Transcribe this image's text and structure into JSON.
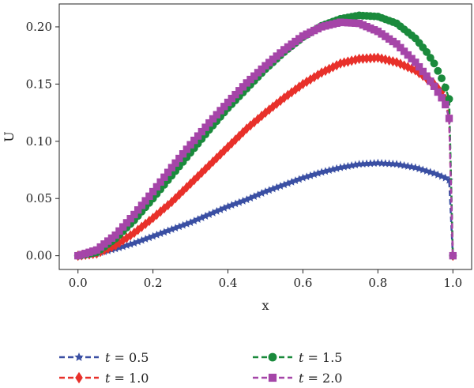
{
  "chart_data": {
    "type": "line",
    "xlabel": "x",
    "ylabel": "U",
    "xlim": [
      -0.05,
      1.05
    ],
    "ylim": [
      -0.012,
      0.22
    ],
    "x_ticks": [
      0.0,
      0.2,
      0.4,
      0.6,
      0.8,
      1.0
    ],
    "x_tick_labels": [
      "0.0",
      "0.2",
      "0.4",
      "0.6",
      "0.8",
      "1.0"
    ],
    "y_ticks": [
      0.0,
      0.05,
      0.1,
      0.15,
      0.2
    ],
    "y_tick_labels": [
      "0.00",
      "0.05",
      "0.10",
      "0.15",
      "0.20"
    ],
    "grid": false,
    "legend_placement": "bottom",
    "series": [
      {
        "name": "t = 0.5",
        "legend_var": "t",
        "legend_rest": " = 0.5",
        "color": "#3a4fa3",
        "marker": "star",
        "x": [
          0.0,
          0.05,
          0.1,
          0.15,
          0.2,
          0.25,
          0.3,
          0.35,
          0.4,
          0.45,
          0.5,
          0.55,
          0.6,
          0.65,
          0.7,
          0.75,
          0.8,
          0.85,
          0.9,
          0.95,
          0.98,
          0.99,
          1.0
        ],
        "values": [
          0.0,
          0.002,
          0.006,
          0.011,
          0.017,
          0.023,
          0.029,
          0.036,
          0.043,
          0.049,
          0.056,
          0.062,
          0.068,
          0.073,
          0.077,
          0.08,
          0.081,
          0.08,
          0.077,
          0.072,
          0.068,
          0.066,
          0.0
        ]
      },
      {
        "name": "t = 1.0",
        "legend_var": "t",
        "legend_rest": " = 1.0",
        "color": "#e8302a",
        "marker": "diamond",
        "x": [
          0.0,
          0.05,
          0.1,
          0.15,
          0.2,
          0.25,
          0.3,
          0.35,
          0.4,
          0.45,
          0.5,
          0.55,
          0.6,
          0.65,
          0.7,
          0.75,
          0.8,
          0.85,
          0.9,
          0.95,
          0.97,
          0.98,
          0.99,
          1.0
        ],
        "values": [
          0.0,
          0.002,
          0.009,
          0.02,
          0.033,
          0.047,
          0.063,
          0.079,
          0.095,
          0.111,
          0.125,
          0.138,
          0.15,
          0.16,
          0.168,
          0.172,
          0.173,
          0.169,
          0.162,
          0.15,
          0.143,
          0.137,
          0.12,
          0.0
        ]
      },
      {
        "name": "t = 1.5",
        "legend_var": "t",
        "legend_rest": " = 1.5",
        "color": "#1a8a3c",
        "marker": "circle",
        "x": [
          0.0,
          0.05,
          0.1,
          0.15,
          0.2,
          0.25,
          0.3,
          0.35,
          0.4,
          0.45,
          0.5,
          0.55,
          0.6,
          0.65,
          0.7,
          0.75,
          0.8,
          0.85,
          0.9,
          0.93,
          0.95,
          0.97,
          0.98,
          0.99,
          1.0
        ],
        "values": [
          0.0,
          0.003,
          0.015,
          0.031,
          0.05,
          0.07,
          0.09,
          0.11,
          0.129,
          0.146,
          0.163,
          0.178,
          0.191,
          0.201,
          0.207,
          0.21,
          0.209,
          0.203,
          0.19,
          0.178,
          0.168,
          0.155,
          0.147,
          0.137,
          0.0
        ]
      },
      {
        "name": "t = 2.0",
        "legend_var": "t",
        "legend_rest": " = 2.0",
        "color": "#a545a8",
        "marker": "square",
        "x": [
          0.0,
          0.05,
          0.1,
          0.15,
          0.2,
          0.25,
          0.3,
          0.35,
          0.4,
          0.45,
          0.5,
          0.55,
          0.6,
          0.65,
          0.7,
          0.75,
          0.8,
          0.85,
          0.9,
          0.93,
          0.95,
          0.97,
          0.98,
          0.99,
          1.0
        ],
        "values": [
          0.0,
          0.005,
          0.018,
          0.036,
          0.056,
          0.077,
          0.097,
          0.116,
          0.134,
          0.151,
          0.166,
          0.18,
          0.192,
          0.2,
          0.204,
          0.203,
          0.196,
          0.185,
          0.169,
          0.157,
          0.148,
          0.138,
          0.132,
          0.12,
          0.0
        ]
      }
    ]
  }
}
